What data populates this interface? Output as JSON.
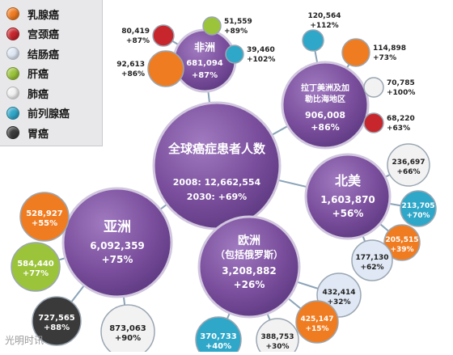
{
  "legend": [
    {
      "label": "乳腺癌",
      "color": "#f07c21"
    },
    {
      "label": "宫颈癌",
      "color": "#c8262d"
    },
    {
      "label": "结肠癌",
      "color": "#dfe8f4"
    },
    {
      "label": "肝癌",
      "color": "#9bc43a"
    },
    {
      "label": "肺癌",
      "color": "#f2f2f2"
    },
    {
      "label": "前列腺癌",
      "color": "#2fa7c9"
    },
    {
      "label": "胃癌",
      "color": "#3a3a3a"
    }
  ],
  "center": {
    "title": "全球癌症患者人数",
    "line1": "2008: 12,662,554",
    "line2": "2030: +69%",
    "color": "#7a4e9c"
  },
  "regions": [
    {
      "id": "africa",
      "name": "非洲",
      "value": "681,094",
      "growth": "+87%",
      "cancers": [
        {
          "type": "宫颈癌",
          "value": "80,419",
          "growth": "+87%"
        },
        {
          "type": "肝癌",
          "value": "51,559",
          "growth": "+89%"
        },
        {
          "type": "乳腺癌",
          "value": "92,613",
          "growth": "+86%"
        },
        {
          "type": "前列腺癌",
          "value": "39,460",
          "growth": "+102%"
        }
      ]
    },
    {
      "id": "latam",
      "name": "拉丁美洲及加勒比海地区",
      "value": "906,008",
      "growth": "+86%",
      "cancers": [
        {
          "type": "前列腺癌",
          "value": "120,564",
          "growth": "+112%"
        },
        {
          "type": "乳腺癌",
          "value": "114,898",
          "growth": "+73%"
        },
        {
          "type": "肺癌",
          "value": "70,785",
          "growth": "+100%"
        },
        {
          "type": "宫颈癌",
          "value": "68,220",
          "growth": "+63%"
        }
      ]
    },
    {
      "id": "namerica",
      "name": "北美",
      "value": "1,603,870",
      "growth": "+56%",
      "cancers": [
        {
          "type": "肺癌",
          "value": "236,697",
          "growth": "+66%"
        },
        {
          "type": "前列腺癌",
          "value": "213,705",
          "growth": "+70%"
        },
        {
          "type": "乳腺癌",
          "value": "205,515",
          "growth": "+39%"
        },
        {
          "type": "结肠癌",
          "value": "177,130",
          "growth": "+62%"
        }
      ]
    },
    {
      "id": "europe",
      "name": "欧洲",
      "name2": "（包括俄罗斯）",
      "value": "3,208,882",
      "growth": "+26%",
      "cancers": [
        {
          "type": "结肠癌",
          "value": "432,414",
          "growth": "+32%"
        },
        {
          "type": "乳腺癌",
          "value": "425,147",
          "growth": "+15%"
        },
        {
          "type": "肺癌",
          "value": "388,753",
          "growth": "+30%"
        },
        {
          "type": "前列腺癌",
          "value": "370,733",
          "growth": "+40%"
        }
      ]
    },
    {
      "id": "asia",
      "name": "亚洲",
      "value": "6,092,359",
      "growth": "+75%",
      "cancers": [
        {
          "type": "乳腺癌",
          "value": "528,927",
          "growth": "+55%"
        },
        {
          "type": "肝癌",
          "value": "584,440",
          "growth": "+77%"
        },
        {
          "type": "胃癌",
          "value": "727,565",
          "growth": "+88%"
        },
        {
          "type": "肺癌",
          "value": "873,063",
          "growth": "+90%"
        }
      ]
    }
  ],
  "watermark": "光明时讯"
}
